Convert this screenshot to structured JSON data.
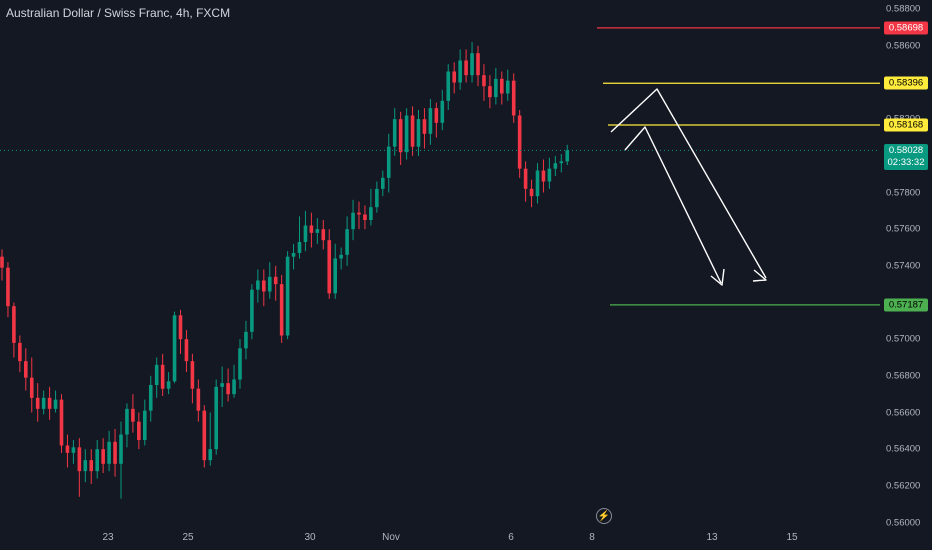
{
  "title": "Australian Dollar / Swiss Franc, 4h, FXCM",
  "icons": {
    "replay": "lightning-icon"
  },
  "chart_data": {
    "type": "candlestick",
    "symbol": "AUDCHF",
    "timeframe": "4h",
    "x_ticks": [
      "23",
      "25",
      "30",
      "Nov",
      "6",
      "8",
      "13",
      "15"
    ],
    "y_ticks": [
      "0.58800",
      "0.58600",
      "0.58400",
      "0.58200",
      "0.58000",
      "0.57800",
      "0.57600",
      "0.57400",
      "0.57200",
      "0.57000",
      "0.56800",
      "0.56600",
      "0.56400",
      "0.56200",
      "0.56000"
    ],
    "ylim": [
      0.5597,
      0.5885
    ],
    "current_price": {
      "label": "0.58028",
      "countdown": "02:33:32",
      "color": "#089981"
    },
    "horizontal_levels": [
      {
        "label": "0.58698",
        "value": 0.58698,
        "color": "#f23645",
        "text_color": "#ffffff"
      },
      {
        "label": "0.58396",
        "value": 0.58396,
        "color": "#ffeb3b",
        "text_color": "#000000"
      },
      {
        "label": "0.58168",
        "value": 0.58168,
        "color": "#ffeb3b",
        "text_color": "#000000"
      },
      {
        "label": "0.57187",
        "value": 0.57187,
        "color": "#4caf50",
        "text_color": "#000000"
      }
    ],
    "colors": {
      "up": "#089981",
      "down": "#f23645",
      "background": "#141823",
      "arrows": "#ffffff"
    },
    "candles": [
      [
        0.5745,
        0.5739,
        0.5749,
        0.5732
      ],
      [
        0.5739,
        0.5718,
        0.5742,
        0.5712
      ],
      [
        0.5718,
        0.5698,
        0.572,
        0.569
      ],
      [
        0.5698,
        0.5688,
        0.5702,
        0.5682
      ],
      [
        0.5688,
        0.5679,
        0.5695,
        0.5672
      ],
      [
        0.5679,
        0.5668,
        0.569,
        0.566
      ],
      [
        0.5668,
        0.5662,
        0.5676,
        0.5655
      ],
      [
        0.5662,
        0.5668,
        0.5672,
        0.5659
      ],
      [
        0.5668,
        0.5662,
        0.5674,
        0.5656
      ],
      [
        0.5662,
        0.5667,
        0.5672,
        0.566
      ],
      [
        0.5667,
        0.5642,
        0.567,
        0.5638
      ],
      [
        0.5642,
        0.5638,
        0.5648,
        0.563
      ],
      [
        0.5638,
        0.5641,
        0.5645,
        0.5632
      ],
      [
        0.5641,
        0.5628,
        0.5646,
        0.5614
      ],
      [
        0.5628,
        0.5634,
        0.564,
        0.5622
      ],
      [
        0.5634,
        0.5628,
        0.564,
        0.5621
      ],
      [
        0.5628,
        0.564,
        0.5645,
        0.5624
      ],
      [
        0.564,
        0.5632,
        0.5646,
        0.5627
      ],
      [
        0.5632,
        0.5644,
        0.565,
        0.5628
      ],
      [
        0.5644,
        0.5632,
        0.5651,
        0.5625
      ],
      [
        0.5632,
        0.5648,
        0.5655,
        0.5613
      ],
      [
        0.5648,
        0.5662,
        0.5665,
        0.5641
      ],
      [
        0.5662,
        0.5655,
        0.567,
        0.5649
      ],
      [
        0.5655,
        0.5645,
        0.566,
        0.564
      ],
      [
        0.5645,
        0.5661,
        0.5667,
        0.5642
      ],
      [
        0.5661,
        0.5675,
        0.568,
        0.5655
      ],
      [
        0.5675,
        0.5686,
        0.569,
        0.5668
      ],
      [
        0.5686,
        0.5673,
        0.5692,
        0.5669
      ],
      [
        0.5673,
        0.5677,
        0.5682,
        0.567
      ],
      [
        0.5677,
        0.5713,
        0.5715,
        0.5676
      ],
      [
        0.5713,
        0.57,
        0.5716,
        0.5692
      ],
      [
        0.57,
        0.5688,
        0.5705,
        0.5682
      ],
      [
        0.5688,
        0.5673,
        0.5692,
        0.5665
      ],
      [
        0.5673,
        0.5661,
        0.5678,
        0.5655
      ],
      [
        0.5661,
        0.5634,
        0.5664,
        0.563
      ],
      [
        0.5634,
        0.564,
        0.566,
        0.5631
      ],
      [
        0.564,
        0.5674,
        0.5678,
        0.5637
      ],
      [
        0.5674,
        0.5676,
        0.5685,
        0.5663
      ],
      [
        0.5676,
        0.567,
        0.5684,
        0.5666
      ],
      [
        0.567,
        0.5678,
        0.5686,
        0.5668
      ],
      [
        0.5678,
        0.5695,
        0.57,
        0.5673
      ],
      [
        0.5695,
        0.5704,
        0.571,
        0.5689
      ],
      [
        0.5704,
        0.5727,
        0.573,
        0.57
      ],
      [
        0.5727,
        0.5732,
        0.5738,
        0.572
      ],
      [
        0.5732,
        0.5726,
        0.5738,
        0.5718
      ],
      [
        0.5726,
        0.5734,
        0.5742,
        0.5722
      ],
      [
        0.5734,
        0.573,
        0.574,
        0.5721
      ],
      [
        0.573,
        0.5702,
        0.5735,
        0.5698
      ],
      [
        0.5702,
        0.5745,
        0.5748,
        0.57
      ],
      [
        0.5745,
        0.5747,
        0.5752,
        0.5738
      ],
      [
        0.5747,
        0.5753,
        0.5767,
        0.5744
      ],
      [
        0.5753,
        0.5762,
        0.577,
        0.5748
      ],
      [
        0.5762,
        0.5758,
        0.5769,
        0.575
      ],
      [
        0.5758,
        0.576,
        0.5766,
        0.5752
      ],
      [
        0.576,
        0.5754,
        0.5765,
        0.5749
      ],
      [
        0.5754,
        0.5725,
        0.576,
        0.5722
      ],
      [
        0.5725,
        0.5744,
        0.5752,
        0.5722
      ],
      [
        0.5744,
        0.5746,
        0.575,
        0.5738
      ],
      [
        0.5746,
        0.576,
        0.5767,
        0.574
      ],
      [
        0.576,
        0.5769,
        0.5776,
        0.5754
      ],
      [
        0.5769,
        0.5768,
        0.5775,
        0.576
      ],
      [
        0.5768,
        0.5765,
        0.5773,
        0.576
      ],
      [
        0.5765,
        0.5772,
        0.5782,
        0.5762
      ],
      [
        0.5772,
        0.5782,
        0.5786,
        0.5769
      ],
      [
        0.5782,
        0.5788,
        0.5792,
        0.5778
      ],
      [
        0.5788,
        0.5805,
        0.5812,
        0.578
      ],
      [
        0.5805,
        0.582,
        0.5826,
        0.58
      ],
      [
        0.582,
        0.5802,
        0.5824,
        0.5795
      ],
      [
        0.5802,
        0.5822,
        0.5826,
        0.5798
      ],
      [
        0.5822,
        0.5805,
        0.5827,
        0.58
      ],
      [
        0.5805,
        0.582,
        0.5825,
        0.58
      ],
      [
        0.582,
        0.5812,
        0.5826,
        0.5804
      ],
      [
        0.5812,
        0.5826,
        0.5831,
        0.5806
      ],
      [
        0.5826,
        0.5818,
        0.5829,
        0.581
      ],
      [
        0.5818,
        0.583,
        0.5836,
        0.5814
      ],
      [
        0.583,
        0.5846,
        0.585,
        0.5825
      ],
      [
        0.5846,
        0.584,
        0.5851,
        0.5834
      ],
      [
        0.584,
        0.5852,
        0.5858,
        0.5836
      ],
      [
        0.5852,
        0.5844,
        0.5858,
        0.584
      ],
      [
        0.5844,
        0.5856,
        0.5862,
        0.584
      ],
      [
        0.5856,
        0.5844,
        0.586,
        0.5838
      ],
      [
        0.5844,
        0.5838,
        0.585,
        0.583
      ],
      [
        0.5838,
        0.5832,
        0.5844,
        0.5826
      ],
      [
        0.5832,
        0.5842,
        0.5848,
        0.5828
      ],
      [
        0.5842,
        0.5834,
        0.5846,
        0.5828
      ],
      [
        0.5834,
        0.5841,
        0.5847,
        0.583
      ],
      [
        0.5841,
        0.5822,
        0.5845,
        0.5818
      ],
      [
        0.5822,
        0.5793,
        0.5825,
        0.5788
      ],
      [
        0.5793,
        0.5782,
        0.5797,
        0.5775
      ],
      [
        0.5782,
        0.5778,
        0.5787,
        0.5772
      ],
      [
        0.5778,
        0.5792,
        0.5796,
        0.5774
      ],
      [
        0.5792,
        0.5786,
        0.5798,
        0.578
      ],
      [
        0.5786,
        0.5793,
        0.5799,
        0.5782
      ],
      [
        0.5793,
        0.5796,
        0.58,
        0.5789
      ],
      [
        0.5796,
        0.5797,
        0.5801,
        0.5791
      ],
      [
        0.5797,
        0.5803,
        0.5806,
        0.5795
      ]
    ]
  }
}
